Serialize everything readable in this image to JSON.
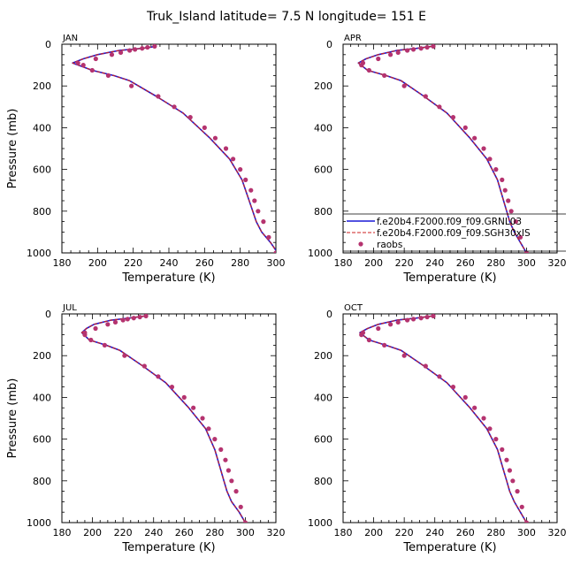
{
  "figure": {
    "title": "Truk_Island   latitude=  7.5 N longitude=  151 E"
  },
  "legend": {
    "items": [
      {
        "label": "f.e20b4.F2000.f09_f09.GRNL03",
        "style": "solid",
        "color": "#1a1ad6"
      },
      {
        "label": "f.e20b4.F2000.f09_f09.SGH30xIS",
        "style": "dashed",
        "color": "#cc1f1f"
      },
      {
        "label": "raobs",
        "style": "dot",
        "color": "#b5336f"
      }
    ],
    "placement": "lower-right of APR panel"
  },
  "colors": {
    "model_a": "#1a1ad6",
    "model_b": "#cc1f1f",
    "obs": "#b5336f"
  },
  "chart_data": [
    {
      "type": "line",
      "panel": "JAN",
      "xlabel": "Temperature (K)",
      "ylabel": "Pressure (mb)",
      "xlim": [
        180,
        300
      ],
      "ylim": [
        1000,
        0
      ],
      "xticks": [
        180,
        200,
        220,
        240,
        260,
        280,
        300
      ],
      "yticks": [
        0,
        200,
        400,
        600,
        800,
        1000
      ],
      "series": [
        {
          "name": "f.e20b4.F2000.f09_f09.GRNL03",
          "style": "solid",
          "x": [
            233,
            225,
            212,
            200,
            192,
            186,
            197,
            209,
            218,
            233,
            248,
            263,
            274,
            281,
            285,
            287,
            289,
            292,
            297,
            301
          ],
          "y": [
            10,
            20,
            30,
            50,
            70,
            90,
            125,
            150,
            175,
            250,
            330,
            450,
            550,
            650,
            750,
            800,
            850,
            900,
            950,
            1000
          ]
        },
        {
          "name": "f.e20b4.F2000.f09_f09.SGH30xIS",
          "style": "dashed",
          "x": [
            233,
            225,
            212,
            200,
            192,
            186,
            197,
            209,
            218,
            233,
            248,
            263,
            274,
            281,
            285,
            287,
            289,
            292,
            297,
            301
          ],
          "y": [
            10,
            20,
            30,
            50,
            70,
            90,
            125,
            150,
            175,
            250,
            330,
            450,
            550,
            650,
            750,
            800,
            850,
            900,
            950,
            1000
          ]
        },
        {
          "name": "raobs",
          "style": "dot",
          "x": [
            232,
            228,
            225,
            221,
            218,
            213,
            208,
            199,
            189,
            192,
            197,
            206,
            219,
            234,
            243,
            252,
            260,
            266,
            272,
            276,
            280,
            283,
            286,
            288,
            290,
            293,
            296,
            300
          ],
          "y": [
            10,
            15,
            20,
            25,
            30,
            40,
            50,
            70,
            90,
            100,
            125,
            150,
            200,
            250,
            300,
            350,
            400,
            450,
            500,
            550,
            600,
            650,
            700,
            750,
            800,
            850,
            925,
            1000
          ]
        }
      ]
    },
    {
      "type": "line",
      "panel": "APR",
      "xlabel": "Temperature (K)",
      "ylabel": "",
      "xlim": [
        180,
        320
      ],
      "ylim": [
        1000,
        0
      ],
      "xticks": [
        180,
        200,
        220,
        240,
        260,
        280,
        300,
        320
      ],
      "yticks": [
        0,
        200,
        400,
        600,
        800,
        1000
      ],
      "series": [
        {
          "name": "f.e20b4.F2000.f09_f09.GRNL03",
          "style": "solid",
          "x": [
            238,
            228,
            215,
            203,
            195,
            190,
            196,
            208,
            218,
            233,
            248,
            263,
            274,
            281,
            285,
            287,
            289,
            292,
            296,
            300
          ],
          "y": [
            10,
            20,
            30,
            50,
            70,
            90,
            125,
            150,
            175,
            250,
            330,
            450,
            550,
            650,
            750,
            800,
            850,
            900,
            950,
            1000
          ]
        },
        {
          "name": "f.e20b4.F2000.f09_f09.SGH30xIS",
          "style": "dashed",
          "x": [
            238,
            228,
            215,
            203,
            195,
            190,
            196,
            208,
            218,
            233,
            248,
            263,
            274,
            281,
            285,
            287,
            289,
            292,
            296,
            300
          ],
          "y": [
            10,
            20,
            30,
            50,
            70,
            90,
            125,
            150,
            175,
            250,
            330,
            450,
            550,
            650,
            750,
            800,
            850,
            900,
            950,
            1000
          ]
        },
        {
          "name": "raobs",
          "style": "dot",
          "x": [
            239,
            235,
            231,
            226,
            222,
            216,
            211,
            203,
            193,
            192,
            197,
            207,
            220,
            234,
            243,
            252,
            260,
            266,
            272,
            276,
            280,
            284,
            286,
            288,
            290,
            293,
            296,
            300
          ],
          "y": [
            10,
            15,
            20,
            25,
            30,
            40,
            50,
            70,
            90,
            100,
            125,
            150,
            200,
            250,
            300,
            350,
            400,
            450,
            500,
            550,
            600,
            650,
            700,
            750,
            800,
            850,
            925,
            1000
          ]
        }
      ]
    },
    {
      "type": "line",
      "panel": "JUL",
      "xlabel": "Temperature (K)",
      "ylabel": "Pressure (mb)",
      "xlim": [
        180,
        320
      ],
      "ylim": [
        1000,
        0
      ],
      "xticks": [
        180,
        200,
        220,
        240,
        260,
        280,
        300,
        320
      ],
      "yticks": [
        0,
        200,
        400,
        600,
        800,
        1000
      ],
      "series": [
        {
          "name": "f.e20b4.F2000.f09_f09.GRNL03",
          "style": "solid",
          "x": [
            234,
            224,
            212,
            201,
            196,
            193,
            198,
            209,
            218,
            233,
            248,
            263,
            274,
            280,
            284,
            286,
            288,
            291,
            296,
            300
          ],
          "y": [
            10,
            20,
            30,
            50,
            70,
            90,
            125,
            150,
            175,
            250,
            330,
            450,
            550,
            650,
            750,
            800,
            850,
            900,
            950,
            1000
          ]
        },
        {
          "name": "f.e20b4.F2000.f09_f09.SGH30xIS",
          "style": "dashed",
          "x": [
            234,
            224,
            212,
            201,
            196,
            193,
            198,
            209,
            218,
            233,
            248,
            263,
            274,
            280,
            284,
            286,
            288,
            291,
            296,
            300
          ],
          "y": [
            10,
            20,
            30,
            50,
            70,
            90,
            125,
            150,
            175,
            250,
            330,
            450,
            550,
            650,
            750,
            800,
            850,
            900,
            950,
            1000
          ]
        },
        {
          "name": "raobs",
          "style": "dot",
          "x": [
            235,
            231,
            227,
            223,
            220,
            215,
            210,
            202,
            195,
            195,
            199,
            208,
            221,
            234,
            243,
            252,
            260,
            266,
            272,
            276,
            280,
            284,
            287,
            289,
            291,
            294,
            297,
            300
          ],
          "y": [
            10,
            15,
            20,
            25,
            30,
            40,
            50,
            70,
            90,
            100,
            125,
            150,
            200,
            250,
            300,
            350,
            400,
            450,
            500,
            550,
            600,
            650,
            700,
            750,
            800,
            850,
            925,
            1000
          ]
        }
      ]
    },
    {
      "type": "line",
      "panel": "OCT",
      "xlabel": "Temperature (K)",
      "ylabel": "",
      "xlim": [
        180,
        320
      ],
      "ylim": [
        1000,
        0
      ],
      "xticks": [
        180,
        200,
        220,
        240,
        260,
        280,
        300,
        320
      ],
      "yticks": [
        0,
        200,
        400,
        600,
        800,
        1000
      ],
      "series": [
        {
          "name": "f.e20b4.F2000.f09_f09.GRNL03",
          "style": "solid",
          "x": [
            238,
            228,
            215,
            203,
            196,
            191,
            197,
            208,
            218,
            233,
            248,
            263,
            274,
            281,
            285,
            287,
            289,
            292,
            296,
            300
          ],
          "y": [
            10,
            20,
            30,
            50,
            70,
            90,
            125,
            150,
            175,
            250,
            330,
            450,
            550,
            650,
            750,
            800,
            850,
            900,
            950,
            1000
          ]
        },
        {
          "name": "f.e20b4.F2000.f09_f09.SGH30xIS",
          "style": "dashed",
          "x": [
            238,
            228,
            215,
            203,
            196,
            191,
            197,
            208,
            218,
            233,
            248,
            263,
            274,
            281,
            285,
            287,
            289,
            292,
            296,
            300
          ],
          "y": [
            10,
            20,
            30,
            50,
            70,
            90,
            125,
            150,
            175,
            250,
            330,
            450,
            550,
            650,
            750,
            800,
            850,
            900,
            950,
            1000
          ]
        },
        {
          "name": "raobs",
          "style": "dot",
          "x": [
            239,
            235,
            231,
            226,
            222,
            216,
            211,
            203,
            193,
            192,
            197,
            207,
            220,
            234,
            243,
            252,
            260,
            266,
            272,
            276,
            280,
            284,
            287,
            289,
            291,
            294,
            297,
            300
          ],
          "y": [
            10,
            15,
            20,
            25,
            30,
            40,
            50,
            70,
            90,
            100,
            125,
            150,
            200,
            250,
            300,
            350,
            400,
            450,
            500,
            550,
            600,
            650,
            700,
            750,
            800,
            850,
            925,
            1000
          ]
        }
      ]
    }
  ]
}
